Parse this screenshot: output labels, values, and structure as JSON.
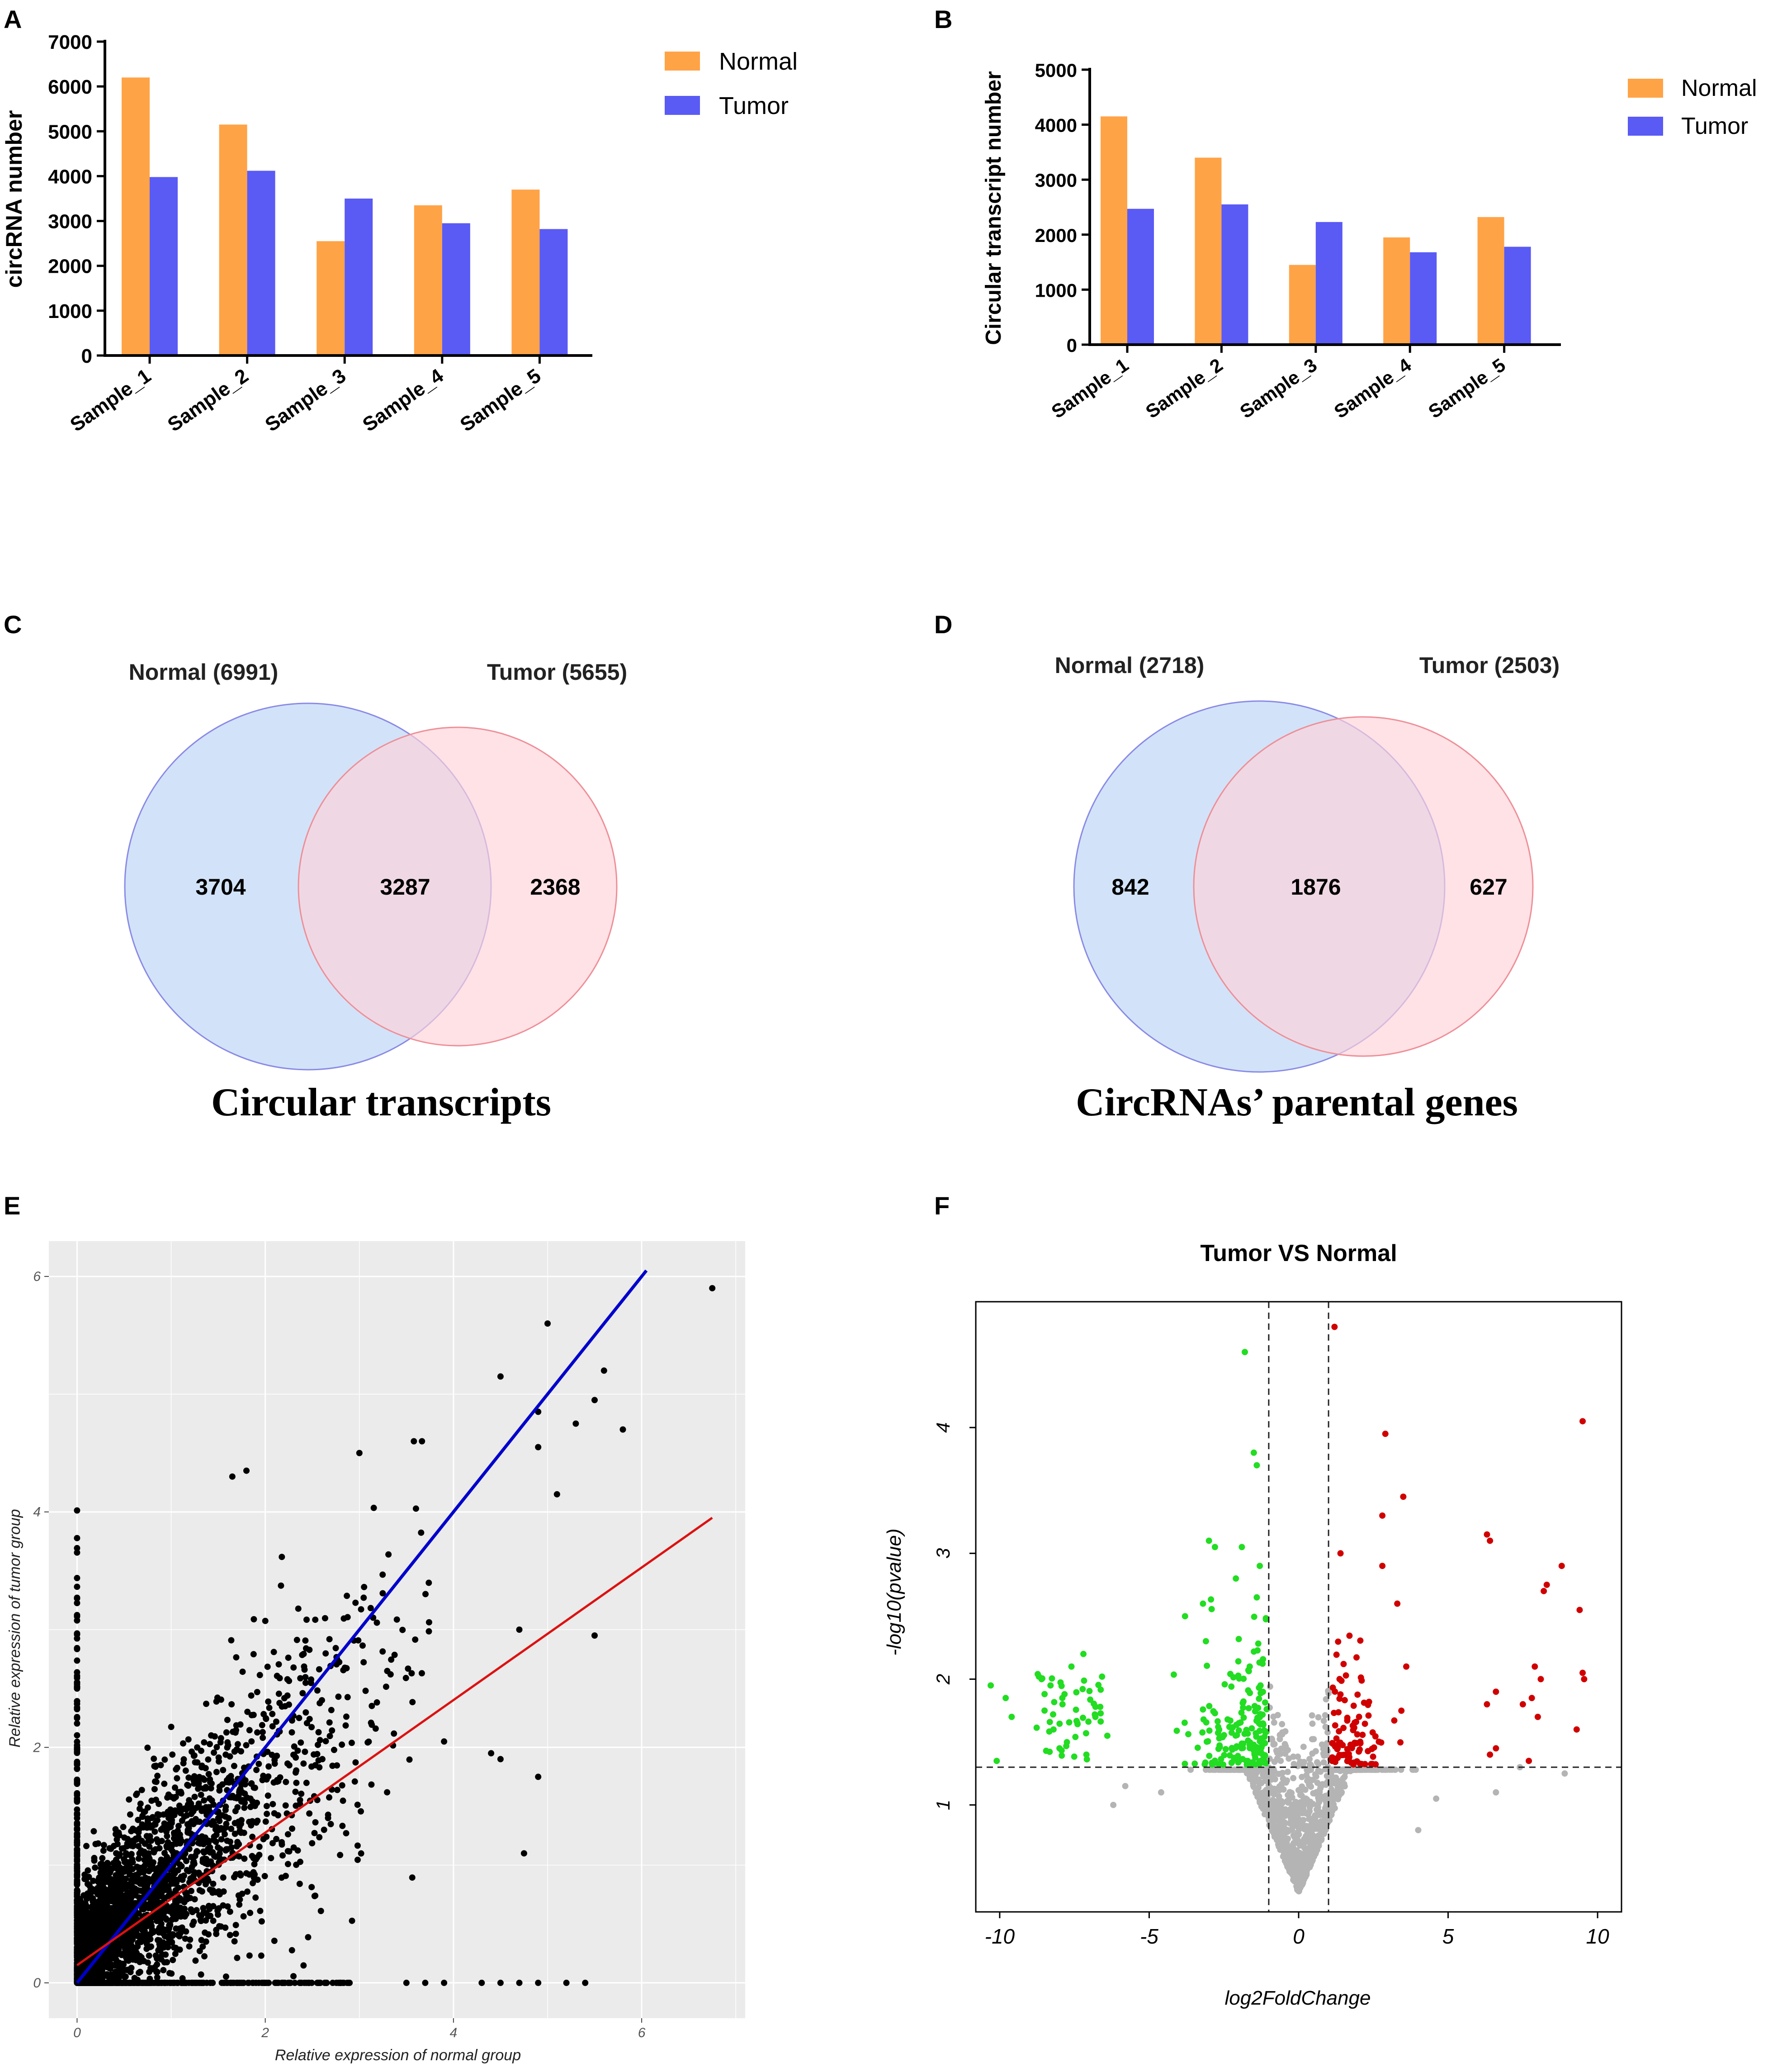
{
  "figure": {
    "panel_letters": [
      "A",
      "B",
      "C",
      "D",
      "E",
      "F"
    ]
  },
  "chart_data": [
    {
      "id": "A",
      "type": "bar",
      "title": "",
      "xlabel": "",
      "ylabel": "circRNA number",
      "categories": [
        "Sample_1",
        "Sample_2",
        "Sample_3",
        "Sample_4",
        "Sample_5"
      ],
      "series": [
        {
          "name": "Normal",
          "values": [
            6200,
            5150,
            2550,
            3350,
            3700
          ],
          "color": "#FFA347"
        },
        {
          "name": "Tumor",
          "values": [
            3980,
            4120,
            3500,
            2950,
            2820
          ],
          "color": "#5A5AF5"
        }
      ],
      "ylim": [
        0,
        7000
      ],
      "yticks": [
        "0",
        "1000",
        "2000",
        "3000",
        "4000",
        "5000",
        "6000",
        "7000"
      ],
      "legend": "top-right"
    },
    {
      "id": "B",
      "type": "bar",
      "title": "",
      "xlabel": "",
      "ylabel": "Circular transcript number",
      "categories": [
        "Sample_1",
        "Sample_2",
        "Sample_3",
        "Sample_4",
        "Sample_5"
      ],
      "series": [
        {
          "name": "Normal",
          "values": [
            4150,
            3400,
            1450,
            1950,
            2320
          ],
          "color": "#FFA347"
        },
        {
          "name": "Tumor",
          "values": [
            2470,
            2550,
            2230,
            1680,
            1780
          ],
          "color": "#5A5AF5"
        }
      ],
      "ylim": [
        0,
        5000
      ],
      "yticks": [
        "0",
        "1000",
        "2000",
        "3000",
        "4000",
        "5000"
      ],
      "legend": "top-right"
    },
    {
      "id": "C",
      "type": "venn",
      "title": "Circular transcripts",
      "sets": [
        {
          "label": "Normal (6991)",
          "only": "3704",
          "color": "#C7DCF7",
          "stroke": "#8A8AE6"
        },
        {
          "label": "Tumor (5655)",
          "only": "2368",
          "color": "#FFD3D8",
          "stroke": "#EE8F98"
        }
      ],
      "intersection": "3287"
    },
    {
      "id": "D",
      "type": "venn",
      "title": "CircRNAs’ parental genes",
      "sets": [
        {
          "label": "Normal (2718)",
          "only": "842",
          "color": "#C7DCF7",
          "stroke": "#8A8AE6"
        },
        {
          "label": "Tumor (2503)",
          "only": "627",
          "color": "#FFD3D8",
          "stroke": "#EE8F98"
        }
      ],
      "intersection": "1876"
    },
    {
      "id": "E",
      "type": "scatter",
      "title": "",
      "xlabel": "Relative expression of normal group",
      "ylabel": "Relative expression of tumor group",
      "xlim": [
        -0.3,
        7.1
      ],
      "ylim": [
        -0.3,
        6.3
      ],
      "xticks": [
        0,
        2,
        4,
        6
      ],
      "yticks": [
        0,
        2,
        4,
        6
      ],
      "point_color": "#000000",
      "lines": [
        {
          "name": "identity",
          "x": [
            0,
            6.05
          ],
          "y": [
            0,
            6.05
          ],
          "color": "#0000CC"
        },
        {
          "name": "fit",
          "x": [
            0,
            6.75
          ],
          "y": [
            0.15,
            3.95
          ],
          "color": "#DD1111"
        }
      ],
      "highlight_points": [
        [
          6.75,
          5.9
        ],
        [
          5.0,
          5.6
        ],
        [
          5.6,
          5.2
        ],
        [
          5.5,
          4.95
        ],
        [
          5.8,
          4.7
        ],
        [
          4.9,
          4.85
        ],
        [
          5.3,
          4.75
        ],
        [
          4.5,
          5.15
        ],
        [
          3.0,
          4.5
        ],
        [
          1.8,
          4.35
        ],
        [
          1.65,
          4.3
        ],
        [
          5.5,
          2.95
        ],
        [
          4.75,
          1.1
        ],
        [
          4.5,
          1.9
        ],
        [
          4.9,
          1.75
        ],
        [
          3.9,
          2.05
        ],
        [
          4.4,
          1.95
        ],
        [
          4.9,
          4.55
        ],
        [
          5.1,
          4.15
        ],
        [
          4.7,
          3.0
        ]
      ]
    },
    {
      "id": "F",
      "type": "scatter",
      "title": "Tumor VS Normal",
      "xlabel": "log2FoldChange",
      "ylabel": "-log10(pvalue)",
      "xlim": [
        -10.8,
        10.8
      ],
      "ylim": [
        0.15,
        5.0
      ],
      "xticks": [
        "-10",
        "-5",
        "0",
        "5",
        "10"
      ],
      "yticks": [
        "1",
        "2",
        "3",
        "4"
      ],
      "thresholds": {
        "log2fc": [
          -1,
          1
        ],
        "neg_log10_p": 1.3
      },
      "colors": {
        "up": "#D00000",
        "down": "#22DD22",
        "ns": "#B4B4B4"
      },
      "up_points": [
        [
          1.2,
          4.8
        ],
        [
          2.9,
          3.95
        ],
        [
          9.5,
          4.05
        ],
        [
          3.5,
          3.45
        ],
        [
          2.8,
          3.3
        ],
        [
          1.4,
          3.0
        ],
        [
          2.8,
          2.9
        ],
        [
          6.3,
          3.15
        ],
        [
          6.4,
          3.1
        ],
        [
          8.8,
          2.9
        ],
        [
          8.3,
          2.75
        ],
        [
          8.2,
          2.7
        ],
        [
          9.4,
          2.55
        ],
        [
          7.9,
          2.1
        ],
        [
          8.1,
          2.0
        ],
        [
          9.5,
          2.05
        ],
        [
          9.55,
          2.0
        ],
        [
          7.5,
          1.8
        ],
        [
          7.8,
          1.85
        ],
        [
          8.0,
          1.7
        ],
        [
          9.3,
          1.6
        ],
        [
          6.6,
          1.9
        ],
        [
          6.3,
          1.8
        ],
        [
          6.4,
          1.4
        ],
        [
          6.6,
          1.45
        ],
        [
          7.7,
          1.35
        ],
        [
          3.3,
          2.6
        ],
        [
          3.6,
          2.1
        ]
      ],
      "down_points": [
        [
          -10.3,
          1.95
        ],
        [
          -9.8,
          1.85
        ],
        [
          -9.6,
          1.7
        ],
        [
          -10.1,
          1.35
        ],
        [
          -8.6,
          2.0
        ],
        [
          -8.3,
          1.95
        ],
        [
          -7.2,
          2.2
        ],
        [
          -7.6,
          2.1
        ],
        [
          -8.5,
          1.75
        ],
        [
          -8.2,
          1.6
        ],
        [
          -7.9,
          1.8
        ],
        [
          -7.4,
          1.65
        ],
        [
          -6.8,
          1.7
        ],
        [
          -6.4,
          1.55
        ],
        [
          -8.0,
          1.45
        ],
        [
          -7.1,
          1.4
        ],
        [
          -1.8,
          4.6
        ],
        [
          -1.5,
          3.8
        ],
        [
          -1.4,
          3.7
        ],
        [
          -3.0,
          3.1
        ],
        [
          -2.8,
          3.05
        ],
        [
          -1.9,
          3.05
        ],
        [
          -2.1,
          2.8
        ],
        [
          -3.8,
          2.5
        ],
        [
          -3.2,
          2.6
        ],
        [
          -1.3,
          2.9
        ],
        [
          -1.4,
          2.65
        ]
      ]
    }
  ]
}
